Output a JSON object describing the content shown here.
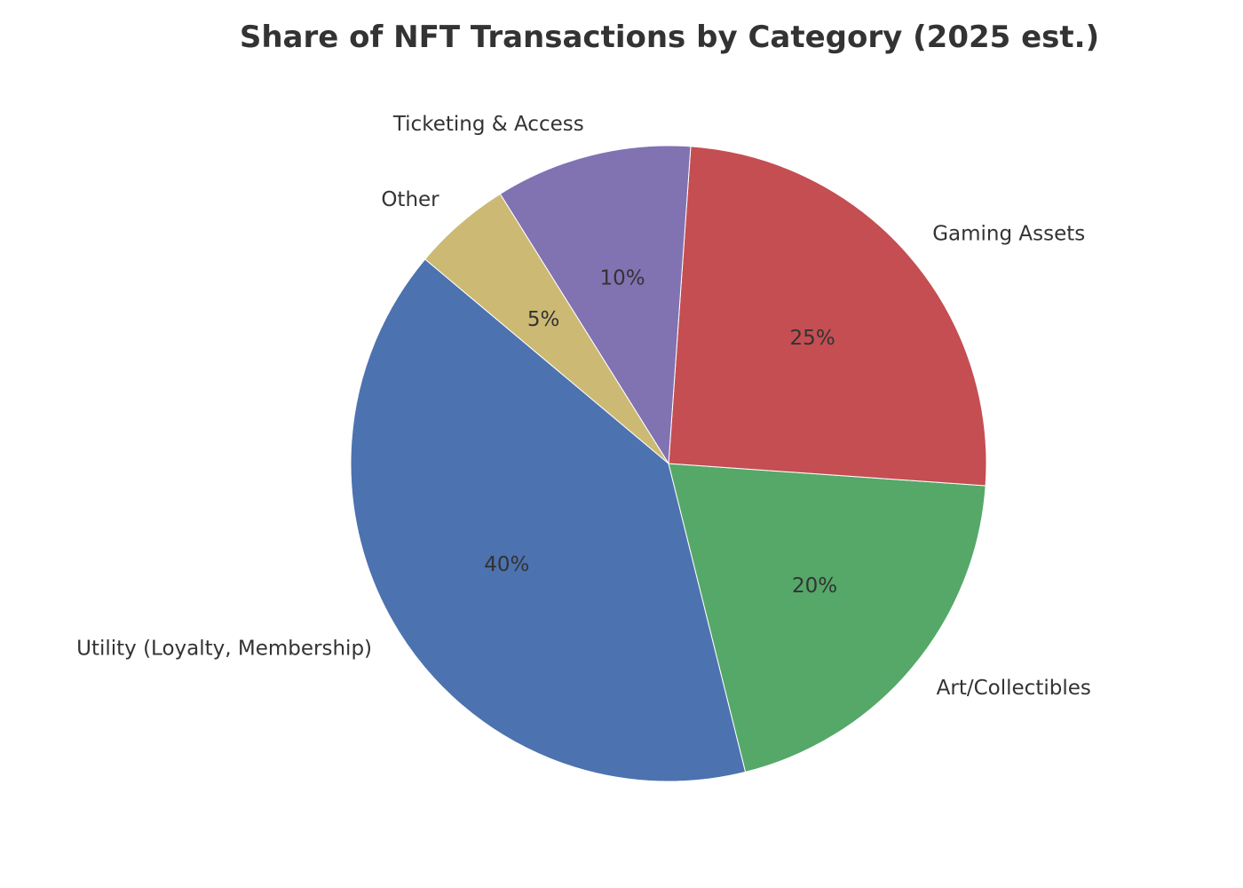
{
  "chart_data": {
    "type": "pie",
    "title": "Share of NFT Transactions by Category (2025 est.)",
    "categories": [
      "Utility (Loyalty, Membership)",
      "Art/Collectibles",
      "Gaming Assets",
      "Ticketing & Access",
      "Other"
    ],
    "values": [
      40,
      20,
      25,
      10,
      5
    ],
    "value_labels": [
      "40%",
      "20%",
      "25%",
      "10%",
      "5%"
    ],
    "colors": [
      "#4c72b0",
      "#55a868",
      "#c44e52",
      "#8172b2",
      "#ccb974"
    ],
    "start_angle_deg": 140,
    "direction": "counterclockwise",
    "legend": "none"
  }
}
